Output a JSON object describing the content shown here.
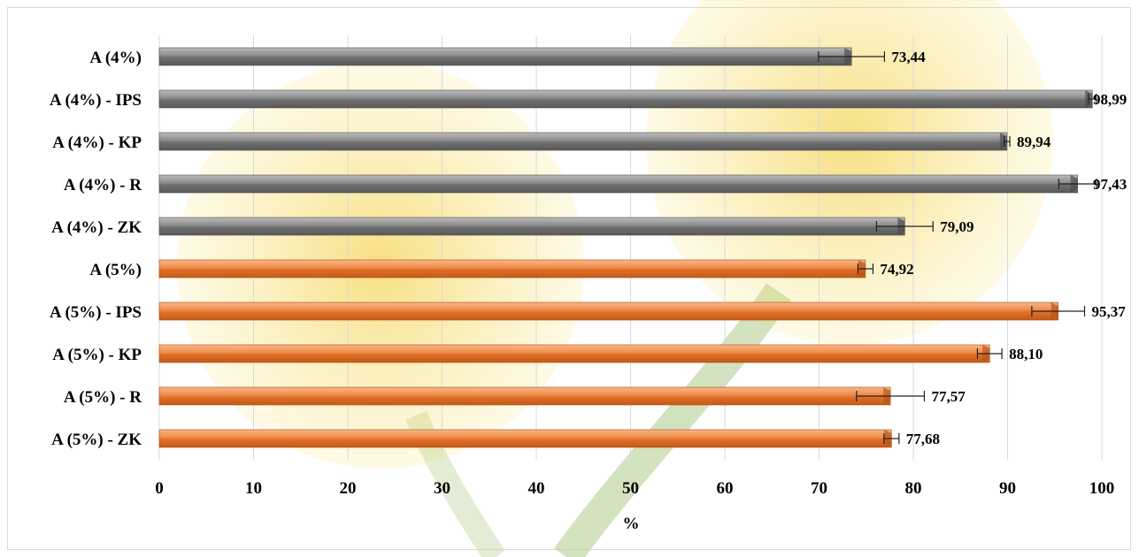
{
  "chart_data": {
    "type": "bar",
    "orientation": "horizontal",
    "categories": [
      "A (4%)",
      "A (4%) - IPS",
      "A (4%) - KP",
      "A (4%) - R",
      "A (4%) - ZK",
      "A (5%)",
      "A (5%) - IPS",
      "A (5%) - KP",
      "A (5%) - R",
      "A (5%) - ZK"
    ],
    "values": [
      73.44,
      98.99,
      89.94,
      97.43,
      79.09,
      74.92,
      95.37,
      88.1,
      77.57,
      77.68
    ],
    "value_labels": [
      "73,44",
      "98,99",
      "89,94",
      "97,43",
      "79,09",
      "74,92",
      "95,37",
      "88,10",
      "77,57",
      "77,68"
    ],
    "errors": [
      3.5,
      0.4,
      0.3,
      2.0,
      3.0,
      0.8,
      2.8,
      1.3,
      3.6,
      0.8
    ],
    "groups": [
      "4%",
      "4%",
      "4%",
      "4%",
      "4%",
      "5%",
      "5%",
      "5%",
      "5%",
      "5%"
    ],
    "group_colors": {
      "4%": "#7f7f7f",
      "5%": "#ed7d31"
    },
    "xlabel": "%",
    "ylabel": "",
    "xlim": [
      0,
      100
    ],
    "xticks": [
      "0",
      "10",
      "20",
      "30",
      "40",
      "50",
      "60",
      "70",
      "80",
      "90",
      "100"
    ],
    "grid": "vertical",
    "legend": "none",
    "background": "dandelion flower image"
  }
}
